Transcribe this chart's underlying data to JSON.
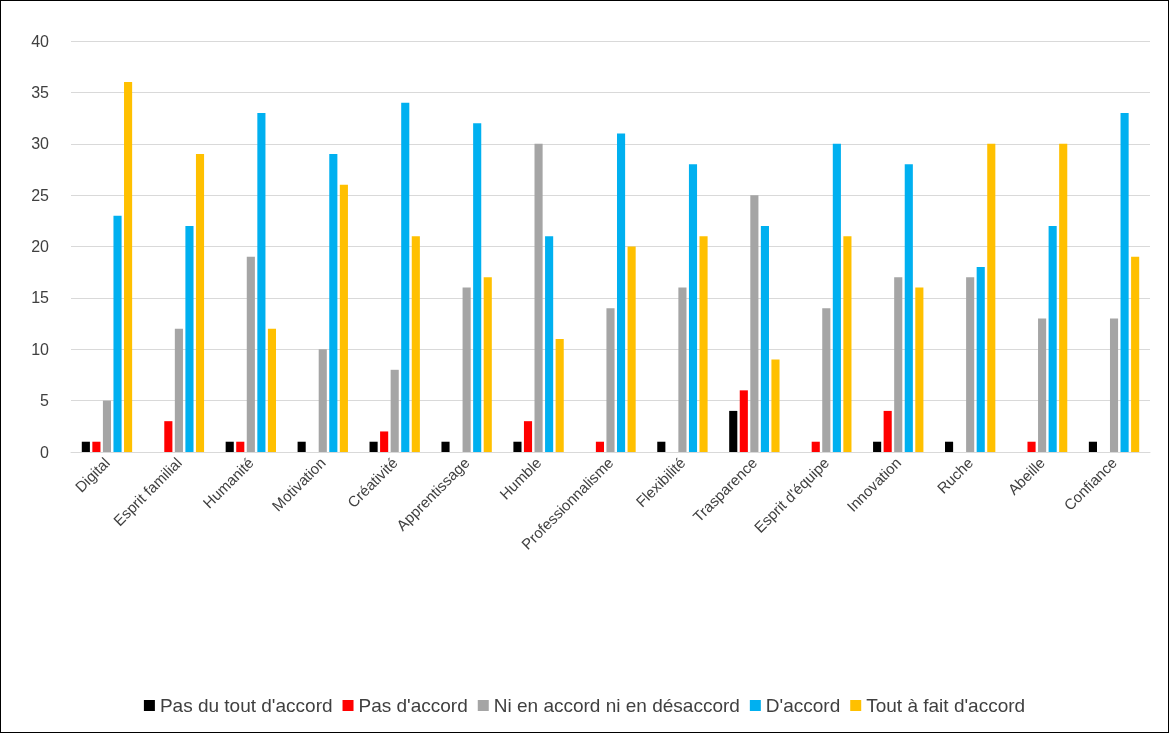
{
  "chart_data": {
    "type": "bar",
    "categories": [
      "Digital",
      "Esprit familial",
      "Humanité",
      "Motivation",
      "Créativité",
      "Apprentissage",
      "Humble",
      "Professionnalisme",
      "Flexibilité",
      "Trasparence",
      "Esprit d'équipe",
      "Innovation",
      "Ruche",
      "Abeille",
      "Confiance"
    ],
    "series": [
      {
        "name": "Pas du tout d'accord",
        "color": "#000000",
        "values": [
          1,
          0,
          1,
          1,
          1,
          1,
          1,
          0,
          1,
          4,
          0,
          1,
          1,
          0,
          1
        ]
      },
      {
        "name": "Pas d'accord",
        "color": "#ff0000",
        "values": [
          1,
          3,
          1,
          0,
          2,
          0,
          3,
          1,
          0,
          6,
          1,
          4,
          0,
          1,
          0
        ]
      },
      {
        "name": "Ni en accord ni en désaccord",
        "color": "#a5a5a5",
        "values": [
          5,
          12,
          19,
          10,
          8,
          16,
          30,
          14,
          16,
          25,
          14,
          17,
          17,
          13,
          13
        ]
      },
      {
        "name": "D'accord",
        "color": "#00b0f0",
        "values": [
          23,
          22,
          33,
          29,
          34,
          32,
          21,
          31,
          28,
          22,
          30,
          28,
          18,
          22,
          33
        ]
      },
      {
        "name": "Tout à fait d'accord",
        "color": "#ffc000",
        "values": [
          36,
          29,
          12,
          26,
          21,
          17,
          11,
          20,
          21,
          9,
          21,
          16,
          30,
          30,
          19
        ]
      }
    ],
    "ylim": [
      0,
      40
    ],
    "yticks": [
      0,
      5,
      10,
      15,
      20,
      25,
      30,
      35,
      40
    ],
    "grid": "y",
    "legend": "bottom"
  }
}
